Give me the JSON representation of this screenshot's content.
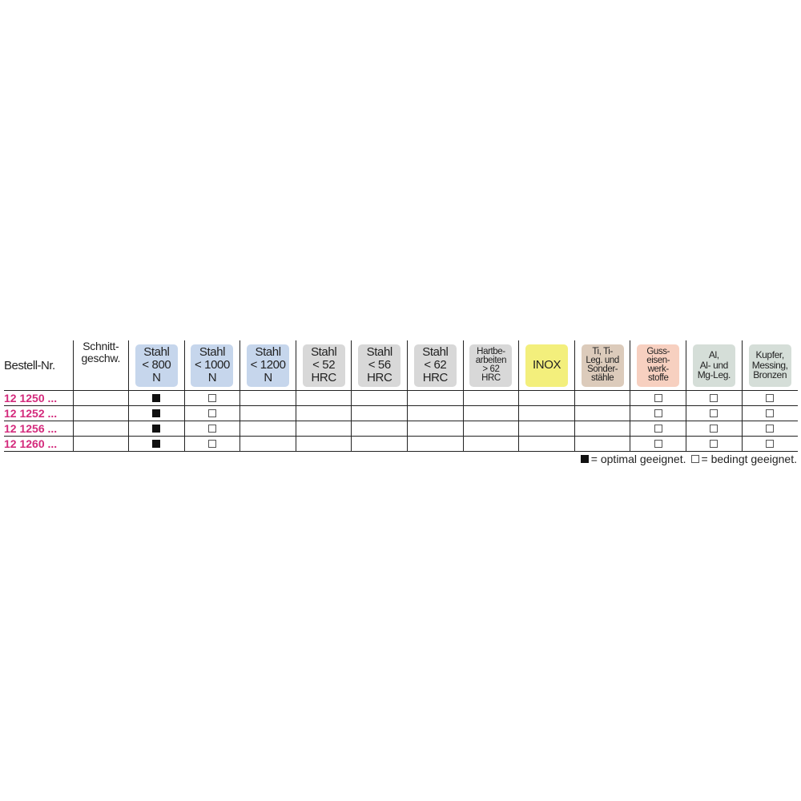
{
  "header": {
    "order_no": "Bestell-Nr.",
    "cutting_speed": "Schnitt-\ngeschw.",
    "materials": [
      {
        "label": "Stahl\n< 800\nN",
        "color": "#c6d6ec",
        "size": "big"
      },
      {
        "label": "Stahl\n< 1000\nN",
        "color": "#c6d6ec",
        "size": "big"
      },
      {
        "label": "Stahl\n< 1200\nN",
        "color": "#c6d6ec",
        "size": "big"
      },
      {
        "label": "Stahl\n< 52\nHRC",
        "color": "#d8d8d8",
        "size": "big"
      },
      {
        "label": "Stahl\n< 56\nHRC",
        "color": "#d8d8d8",
        "size": "big"
      },
      {
        "label": "Stahl\n< 62\nHRC",
        "color": "#d8d8d8",
        "size": "big"
      },
      {
        "label": "Hartbe-\narbeiten\n> 62\nHRC",
        "color": "#d8d8d8",
        "size": "xs"
      },
      {
        "label": "INOX",
        "color": "#f3ef7c",
        "size": "big"
      },
      {
        "label": "Ti, Ti-\nLeg. und\nSonder-\nstähle",
        "color": "#dccbbb",
        "size": "xs"
      },
      {
        "label": "Guss-\neisen-\nwerk-\nstoffe",
        "color": "#f7d0c0",
        "size": "xs"
      },
      {
        "label": "Al,\nAl- und\nMg-Leg.",
        "color": "#d5ded8",
        "size": "small"
      },
      {
        "label": "Kupfer,\nMessing,\nBronzen",
        "color": "#d5ded8",
        "size": "small"
      }
    ]
  },
  "rows": [
    {
      "id": "12 1250 ...",
      "speed": "",
      "ratings": [
        "full",
        "empty",
        "",
        "",
        "",
        "",
        "",
        "",
        "",
        "empty",
        "empty",
        "empty"
      ]
    },
    {
      "id": "12 1252 ...",
      "speed": "",
      "ratings": [
        "full",
        "empty",
        "",
        "",
        "",
        "",
        "",
        "",
        "",
        "empty",
        "empty",
        "empty"
      ]
    },
    {
      "id": "12 1256 ...",
      "speed": "",
      "ratings": [
        "full",
        "empty",
        "",
        "",
        "",
        "",
        "",
        "",
        "",
        "empty",
        "empty",
        "empty"
      ]
    },
    {
      "id": "12 1260 ...",
      "speed": "",
      "ratings": [
        "full",
        "empty",
        "",
        "",
        "",
        "",
        "",
        "",
        "",
        "empty",
        "empty",
        "empty"
      ]
    }
  ],
  "legend": {
    "optimal": "= optimal geeignet.",
    "conditional": "= bedingt geeignet."
  },
  "colors": {
    "article_number": "#d42a7c"
  }
}
